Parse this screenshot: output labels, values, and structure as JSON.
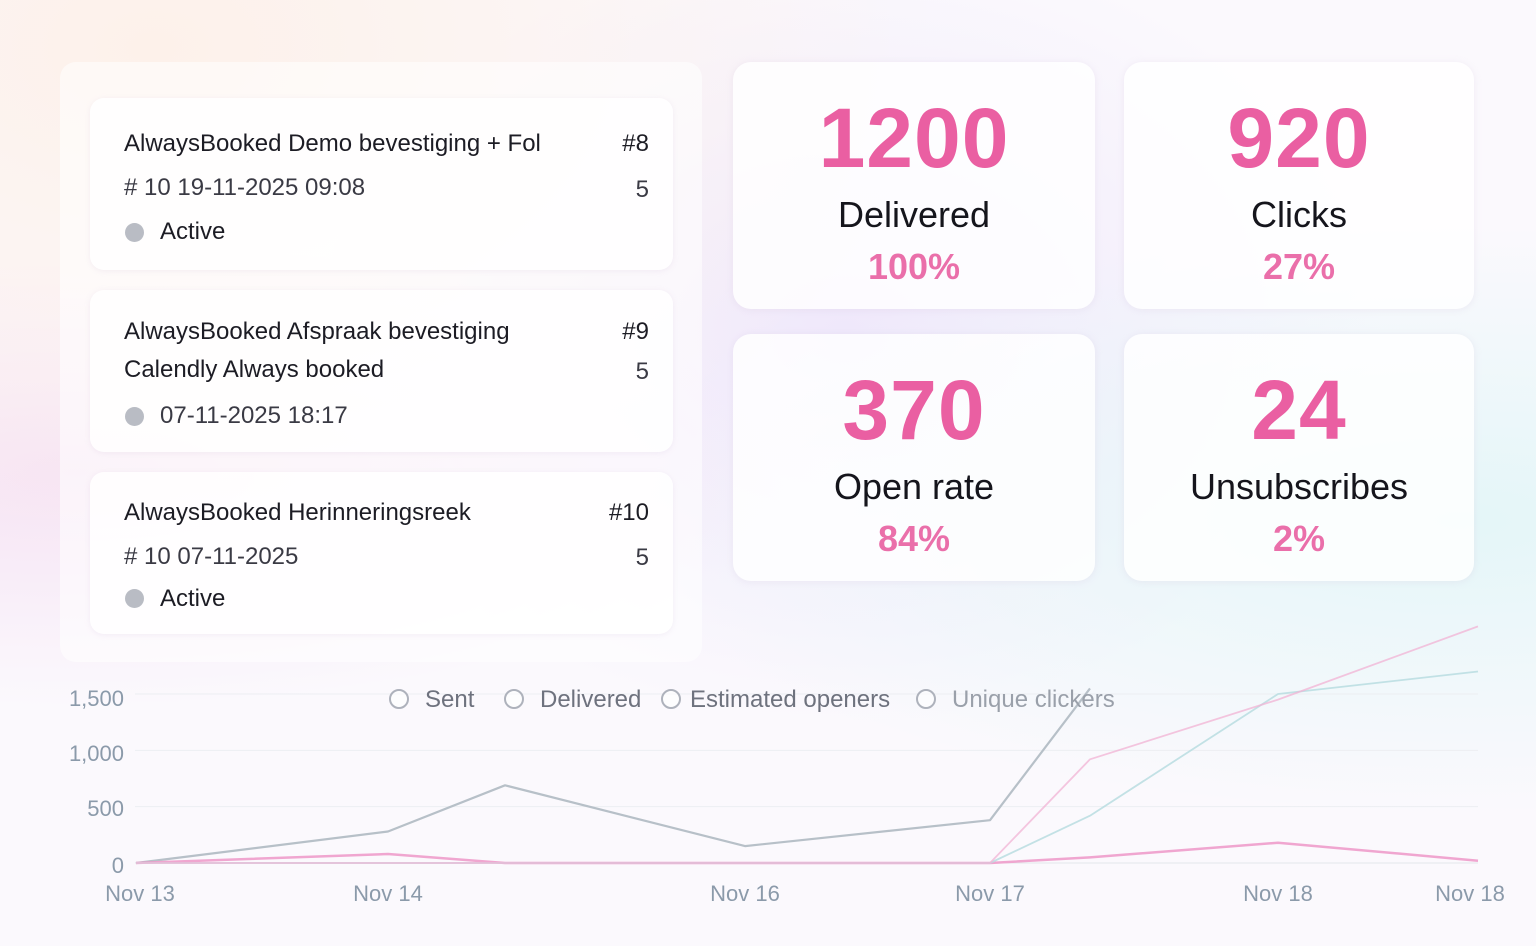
{
  "campaigns": [
    {
      "title": "AlwaysBooked Demo bevestiging + Fol",
      "id": "#8",
      "meta": "#  10  19-11-2025 09:08",
      "count": "5",
      "status": "Active"
    },
    {
      "title": "AlwaysBooked Afspraak bevestiging",
      "id": "#9",
      "subtitle": "Calendly Always booked",
      "count": "5",
      "date": "07-11-2025 18:17"
    },
    {
      "title": "AlwaysBooked Herinneringsreek",
      "id": "#10",
      "meta": "#  10  07-11-2025",
      "count": "5",
      "status": "Active"
    }
  ],
  "stats": {
    "delivered": {
      "value": "1200",
      "label": "Delivered",
      "pct": "100%"
    },
    "clicks": {
      "value": "920",
      "label": "Clicks",
      "pct": "27%"
    },
    "open_rate": {
      "value": "370",
      "label": "Open rate",
      "pct": "84%"
    },
    "unsubscribes": {
      "value": "24",
      "label": "Unsubscribes",
      "pct": "2%"
    }
  },
  "legend": [
    "Sent",
    "Delivered",
    "Estimated openers",
    "Unique clickers"
  ],
  "colors": {
    "accent": "#ea5fa2",
    "sent": "#b7c0c8",
    "delivered": "#ee9ccb",
    "openers": "#b9dde0",
    "clickers": "#f2b3d4"
  },
  "chart_data": {
    "type": "line",
    "x": [
      "Nov 13",
      "Nov 14",
      "",
      "Nov 16",
      "Nov 17",
      "",
      "Nov 18",
      "Nov 18"
    ],
    "y_ticks": [
      "0",
      "500",
      "1,000",
      "1,500"
    ],
    "ylim": [
      0,
      1500
    ],
    "series": [
      {
        "name": "Sent",
        "values": [
          0,
          280,
          690,
          150,
          380,
          1550,
          null,
          null
        ]
      },
      {
        "name": "Delivered",
        "values": [
          0,
          80,
          0,
          0,
          0,
          50,
          180,
          20
        ]
      },
      {
        "name": "Estimated openers",
        "values": [
          0,
          0,
          0,
          0,
          0,
          420,
          1500,
          1700
        ]
      },
      {
        "name": "Unique clickers",
        "values": [
          0,
          0,
          0,
          0,
          0,
          920,
          1450,
          2100
        ]
      }
    ]
  }
}
